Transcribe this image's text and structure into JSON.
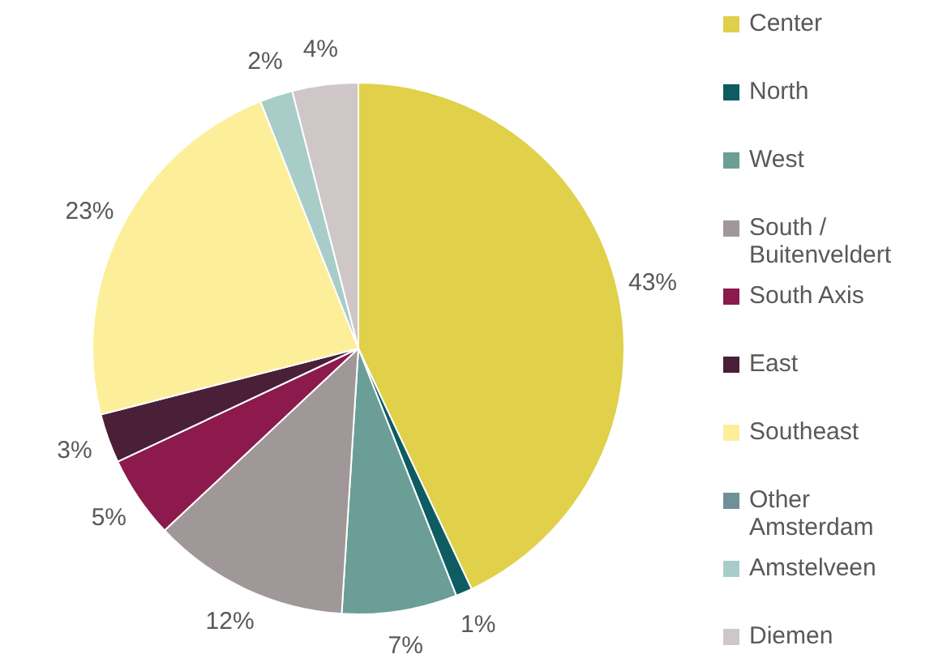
{
  "chart_data": {
    "type": "pie",
    "categories": [
      "Center",
      "North",
      "West",
      "South / Buitenveldert",
      "South Axis",
      "East",
      "Southeast",
      "Other Amsterdam",
      "Amstelveen",
      "Diemen"
    ],
    "values": [
      43,
      1,
      7,
      12,
      5,
      3,
      23,
      0,
      2,
      4
    ],
    "value_labels": [
      "43%",
      "1%",
      "7%",
      "12%",
      "5%",
      "3%",
      "23%",
      null,
      "2%",
      "4%"
    ],
    "colors": [
      "#e0d04a",
      "#0e5c62",
      "#6a9e96",
      "#a09898",
      "#8c1a4c",
      "#4a2038",
      "#fdef9a",
      "#6f8f99",
      "#a8cdc8",
      "#cfc6c8"
    ],
    "legend": "right"
  }
}
